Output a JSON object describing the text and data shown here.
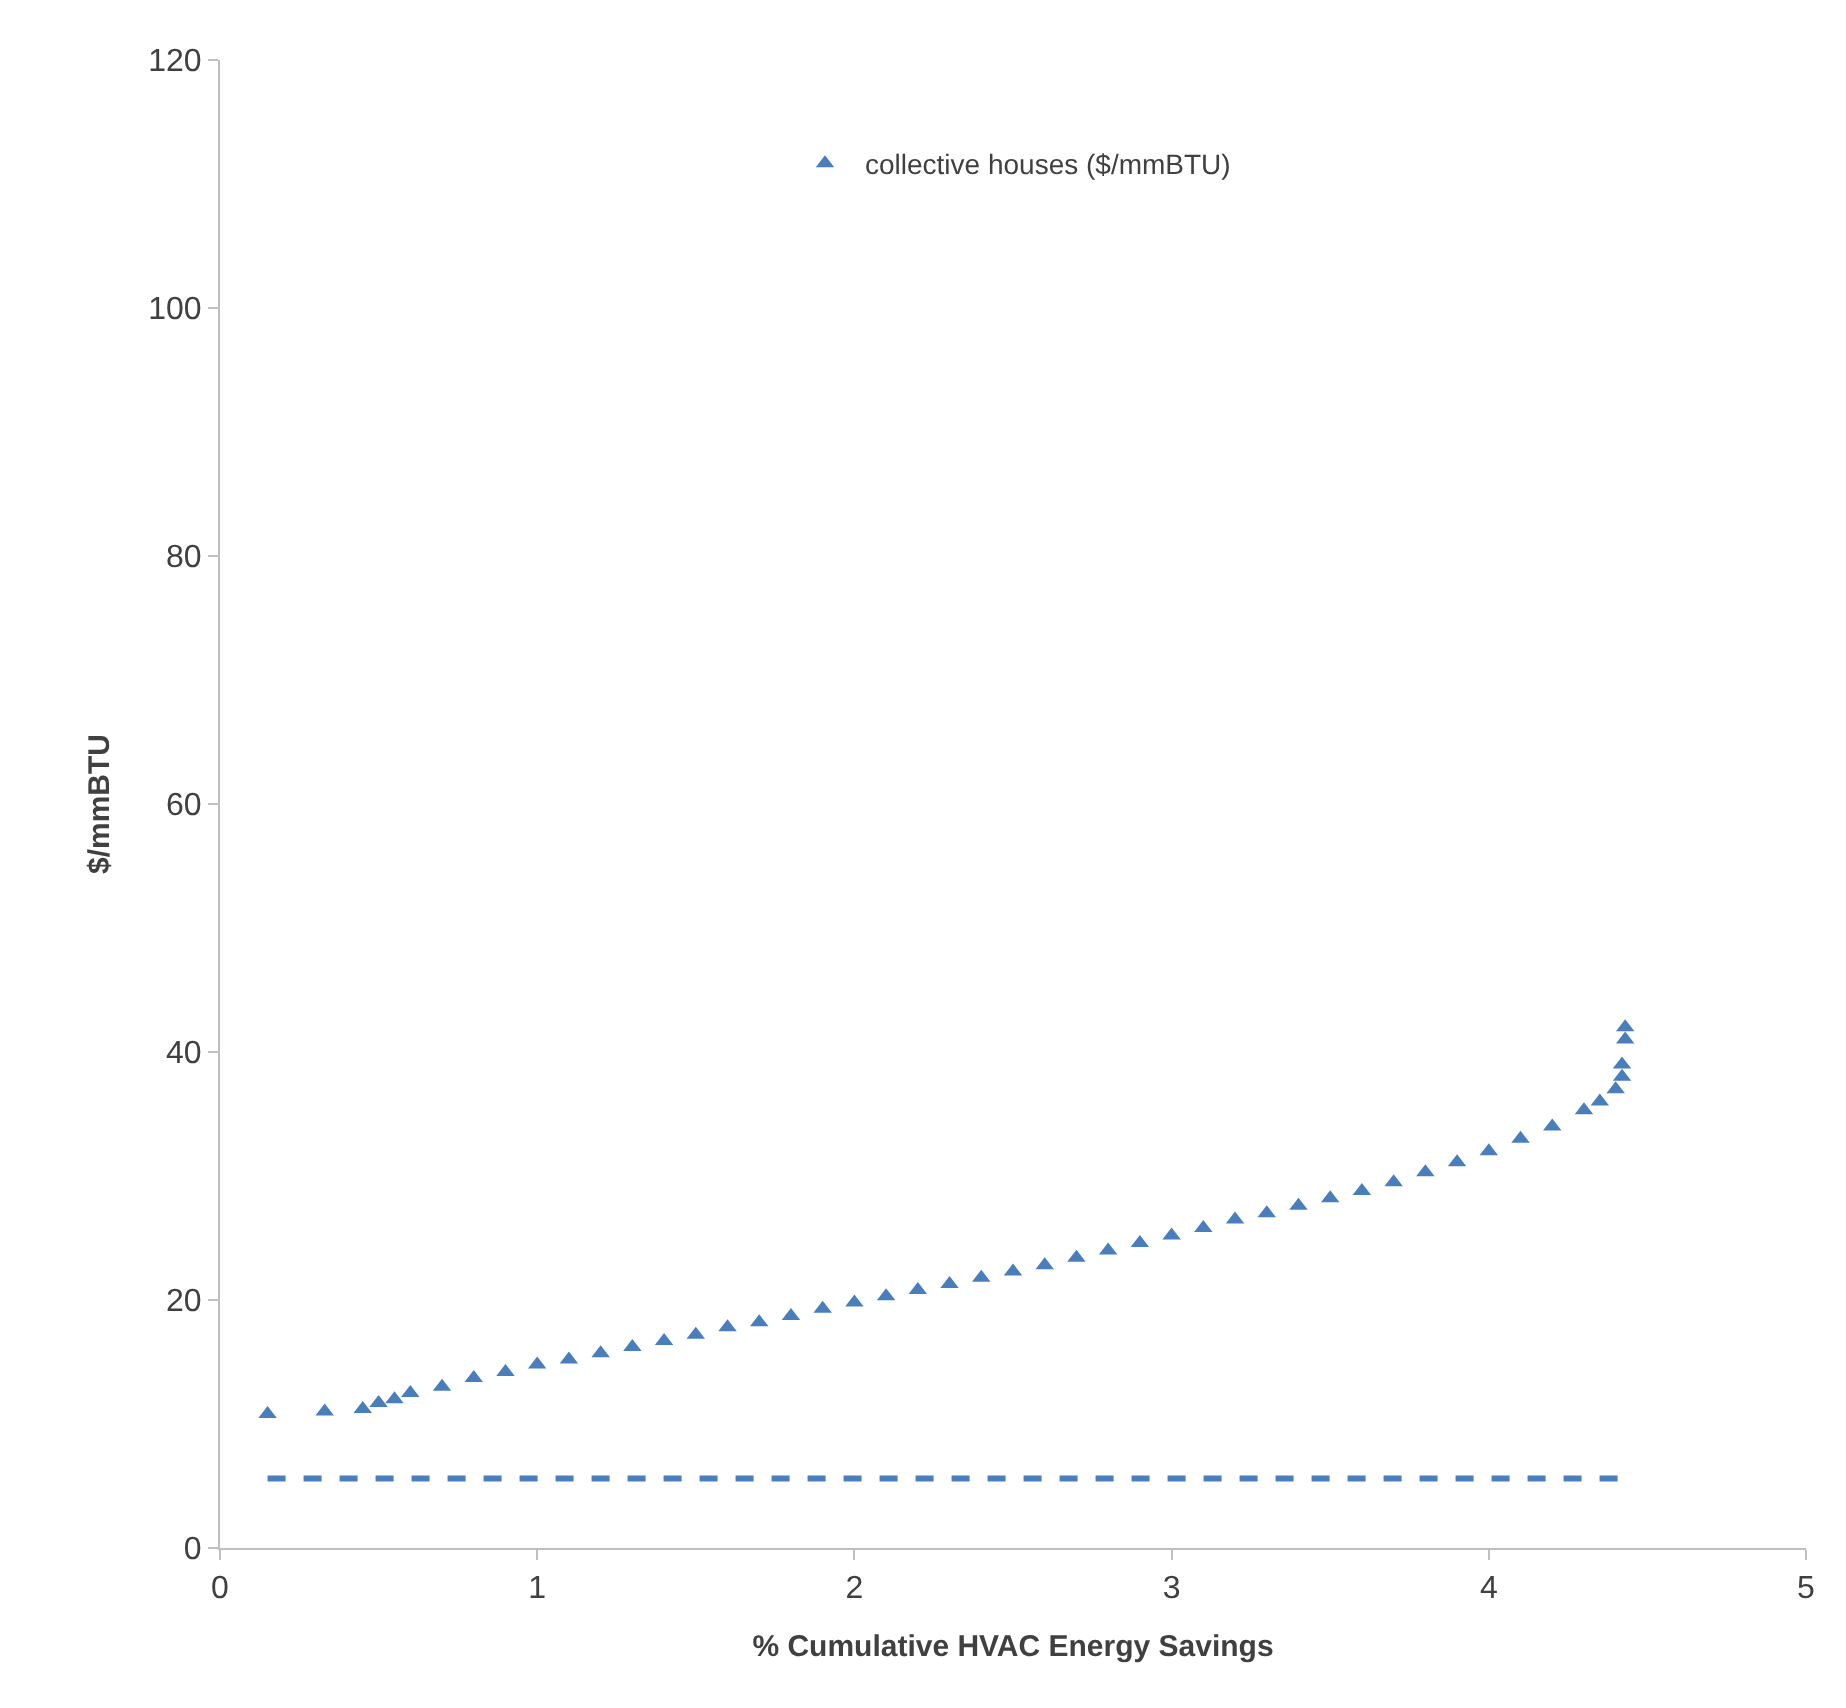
{
  "chart_data": {
    "type": "scatter",
    "xlabel": "% Cumulative HVAC Energy Savings",
    "ylabel": "$/mmBTU",
    "xlim": [
      0,
      5
    ],
    "xticks": [
      0,
      1,
      2,
      3,
      4,
      5
    ],
    "ylim": [
      0,
      120
    ],
    "yticks": [
      0,
      20,
      40,
      60,
      80,
      100,
      120
    ],
    "legend": "top",
    "marker": "triangle",
    "series": [
      {
        "name": "collective houses ($/mmBTU)",
        "color": "#4a7ebb",
        "x": [
          0.15,
          0.33,
          0.45,
          0.5,
          0.55,
          0.6,
          0.7,
          0.8,
          0.9,
          1.0,
          1.1,
          1.2,
          1.3,
          1.4,
          1.5,
          1.6,
          1.7,
          1.8,
          1.9,
          2.0,
          2.1,
          2.2,
          2.3,
          2.4,
          2.5,
          2.6,
          2.7,
          2.8,
          2.9,
          3.0,
          3.1,
          3.2,
          3.3,
          3.4,
          3.5,
          3.6,
          3.7,
          3.8,
          3.9,
          4.0,
          4.1,
          4.2,
          4.3,
          4.35,
          4.4,
          4.42,
          4.42,
          4.43,
          4.43
        ],
        "values": [
          10.8,
          11,
          11.2,
          11.7,
          12,
          12.5,
          13,
          13.7,
          14.2,
          14.8,
          15.2,
          15.7,
          16.2,
          16.7,
          17.2,
          17.8,
          18.2,
          18.7,
          19.3,
          19.8,
          20.3,
          20.8,
          21.3,
          21.8,
          22.3,
          22.8,
          23.4,
          24,
          24.6,
          25.2,
          25.8,
          26.5,
          27,
          27.6,
          28.2,
          28.8,
          29.5,
          30.3,
          31.1,
          32,
          33,
          34,
          35.3,
          36,
          37,
          38,
          39,
          41,
          42
        ]
      },
      {
        "type": "line",
        "line_style": "dashed",
        "marker": "none",
        "color": "#4a7ebb",
        "x": [
          0.15,
          4.42
        ],
        "values": [
          5.6,
          5.6
        ]
      }
    ]
  }
}
